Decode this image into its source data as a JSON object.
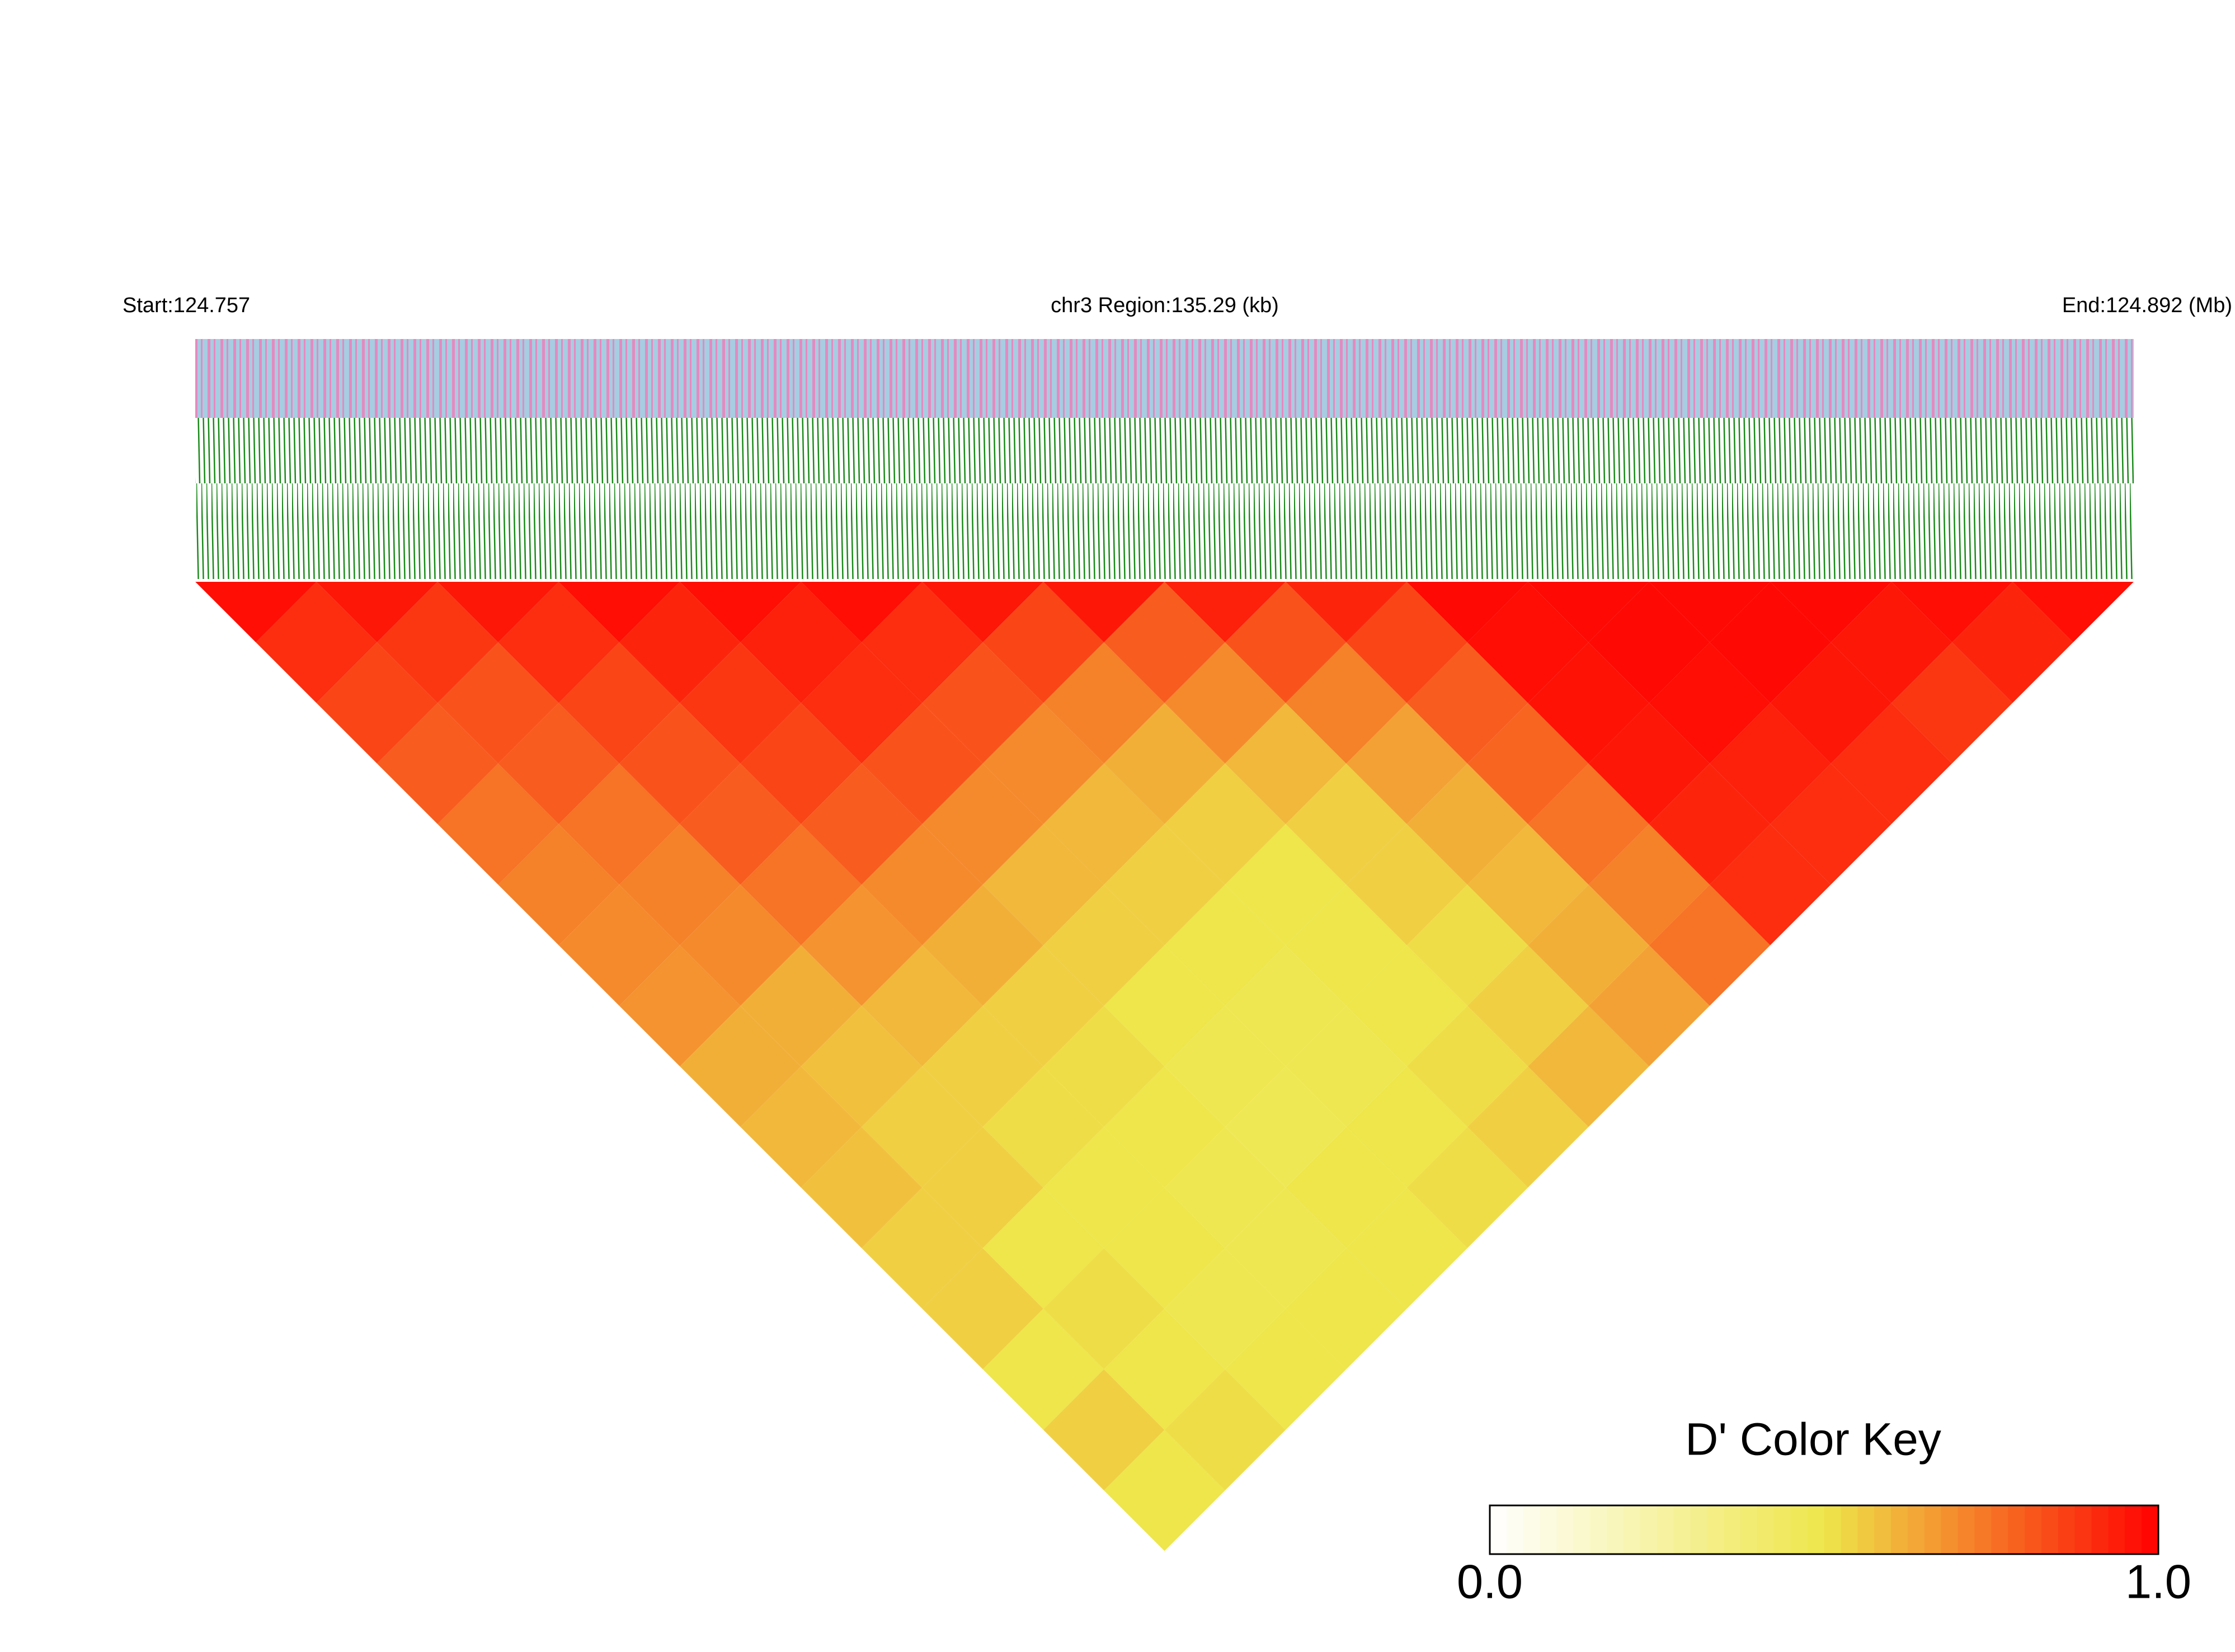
{
  "chart_data": {
    "type": "heatmap",
    "start_label": "Start:124.757",
    "region_label": "chr3 Region:135.29 (kb)",
    "end_label": "End:124.892 (Mb)",
    "key_title": "D' Color Key",
    "colorscale": [
      "#ffffff",
      "#eee64a",
      "#ff0000"
    ],
    "keylim": [
      0,
      1
    ],
    "keyticks": [
      {
        "value": 0,
        "label": "0.0"
      },
      {
        "value": 1,
        "label": "1.0"
      }
    ],
    "matrix": [
      [
        0.97,
        0.9,
        0.85,
        0.8,
        0.75,
        0.72,
        0.7,
        0.68,
        0.62,
        0.6,
        0.58,
        0.55,
        0.55,
        0.5,
        0.55,
        0.5
      ],
      [
        0.95,
        0.88,
        0.82,
        0.8,
        0.75,
        0.72,
        0.7,
        0.62,
        0.58,
        0.55,
        0.55,
        0.5,
        0.52,
        0.5,
        0.52
      ],
      [
        0.95,
        0.9,
        0.85,
        0.82,
        0.8,
        0.75,
        0.68,
        0.6,
        0.55,
        0.52,
        0.5,
        0.5,
        0.48,
        0.5
      ],
      [
        0.97,
        0.92,
        0.88,
        0.85,
        0.8,
        0.7,
        0.62,
        0.55,
        0.52,
        0.5,
        0.48,
        0.48,
        0.5
      ],
      [
        0.97,
        0.93,
        0.9,
        0.82,
        0.7,
        0.6,
        0.55,
        0.5,
        0.48,
        0.47,
        0.5,
        0.5
      ],
      [
        0.97,
        0.9,
        0.82,
        0.7,
        0.6,
        0.55,
        0.5,
        0.48,
        0.48,
        0.5,
        0.52
      ],
      [
        0.95,
        0.85,
        0.72,
        0.62,
        0.55,
        0.5,
        0.5,
        0.5,
        0.52,
        0.55
      ],
      [
        0.95,
        0.8,
        0.7,
        0.6,
        0.55,
        0.55,
        0.52,
        0.55,
        0.6
      ],
      [
        0.93,
        0.82,
        0.72,
        0.65,
        0.62,
        0.6,
        0.62,
        0.65
      ],
      [
        0.92,
        0.85,
        0.8,
        0.78,
        0.75,
        0.72,
        0.75
      ],
      [
        0.98,
        0.97,
        0.96,
        0.95,
        0.92,
        0.9
      ],
      [
        0.98,
        0.98,
        0.97,
        0.93,
        0.9
      ],
      [
        0.98,
        0.98,
        0.95,
        0.9
      ],
      [
        0.98,
        0.95,
        0.88
      ],
      [
        0.97,
        0.92
      ],
      [
        0.97
      ]
    ]
  }
}
